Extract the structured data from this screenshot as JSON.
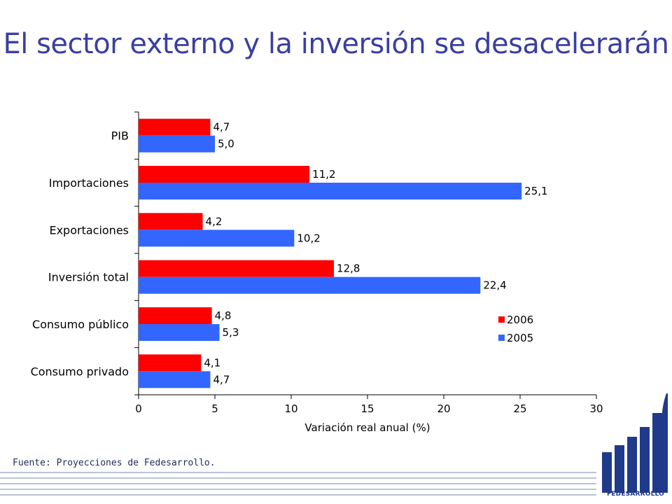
{
  "slide": {
    "title": "El sector externo y la inversión se desacelerarán",
    "source": "Fuente: Proyecciones de Fedesarrollo.",
    "logo_text": "FEDESARROLLO"
  },
  "chart_data": {
    "type": "bar",
    "orientation": "horizontal",
    "categories": [
      "PIB",
      "Importaciones",
      "Exportaciones",
      "Inversión total",
      "Consumo público",
      "Consumo privado"
    ],
    "series": [
      {
        "name": "2006",
        "color": "#ff0000",
        "values": [
          4.7,
          11.2,
          4.2,
          12.8,
          4.8,
          4.1
        ],
        "labels": [
          "4,7",
          "11,2",
          "4,2",
          "12,8",
          "4,8",
          "4,1"
        ]
      },
      {
        "name": "2005",
        "color": "#3366ff",
        "values": [
          5.0,
          25.1,
          10.2,
          22.4,
          5.3,
          4.7
        ],
        "labels": [
          "5,0",
          "25,1",
          "10,2",
          "22,4",
          "5,3",
          "4,7"
        ]
      }
    ],
    "xlabel": "Variación real anual (%)",
    "xlim": [
      0,
      30
    ],
    "xticks": [
      "0",
      "5",
      "10",
      "15",
      "20",
      "25",
      "30"
    ],
    "grid": false,
    "legend_position": "right"
  },
  "colors": {
    "title": "#3b3fa0",
    "brand": "#1f3a8a"
  }
}
